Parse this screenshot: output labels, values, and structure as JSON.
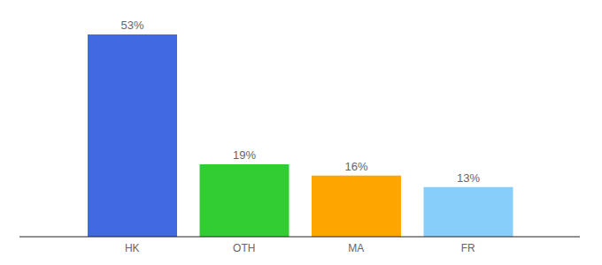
{
  "chart_data": {
    "type": "bar",
    "categories": [
      "HK",
      "OTH",
      "MA",
      "FR"
    ],
    "values": [
      53,
      19,
      16,
      13
    ],
    "value_labels": [
      "53%",
      "19%",
      "16%",
      "13%"
    ],
    "colors": [
      "#4169e1",
      "#32cd32",
      "#ffa500",
      "#87cefa"
    ],
    "data_labels": true,
    "tick_labels": "x",
    "grid": false
  }
}
